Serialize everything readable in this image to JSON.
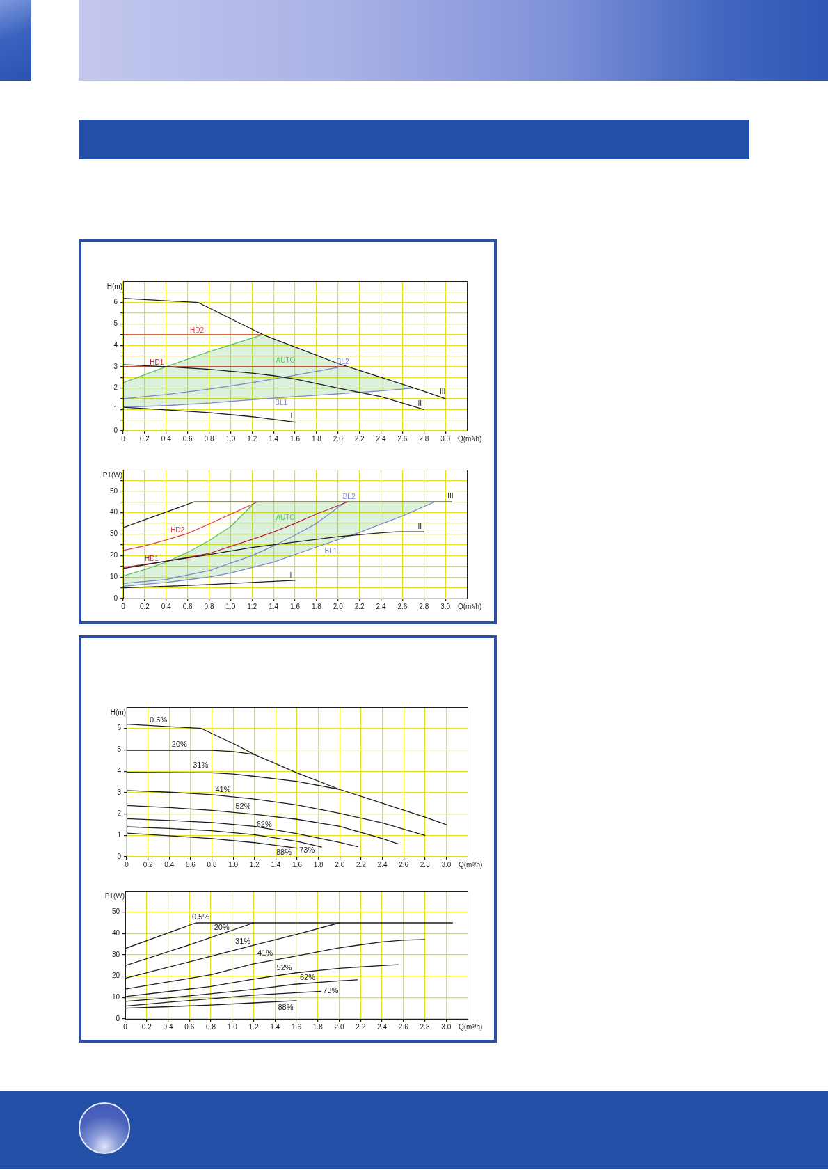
{
  "chart_data": [
    {
      "type": "line",
      "xlabel": "Q(m³/h)",
      "ylabel": "H(m)",
      "xlim": [
        0,
        3.2
      ],
      "ylim": [
        0,
        7
      ],
      "xticks": [
        0,
        0.2,
        0.4,
        0.6,
        0.8,
        {
          "value": 1,
          "label": "1.0"
        },
        1.2,
        1.4,
        1.6,
        1.8,
        {
          "value": 2,
          "label": "2.0"
        },
        2.2,
        2.4,
        2.6,
        2.8,
        {
          "value": 3,
          "label": "3.0"
        }
      ],
      "yticks": [
        0,
        {
          "value": 0.5,
          "label": null
        },
        1,
        {
          "value": 1.5,
          "label": null
        },
        2,
        {
          "value": 2.5,
          "label": null
        },
        3,
        {
          "value": 3.5,
          "label": null
        },
        4,
        {
          "value": 4.5,
          "label": null
        },
        5,
        {
          "value": 5.5,
          "label": null
        },
        6,
        {
          "value": 6.5,
          "label": null
        }
      ],
      "grid": true,
      "series": [
        {
          "name": "III",
          "color": "#1e1e1e",
          "x": [
            0,
            0.7,
            1.0,
            1.3,
            1.6,
            2.0,
            2.4,
            2.8,
            3.0
          ],
          "values": [
            6.2,
            6.0,
            5.25,
            4.5,
            3.92,
            3.15,
            2.5,
            1.85,
            1.5
          ]
        },
        {
          "name": "II",
          "color": "#1e1e1e",
          "x": [
            0,
            0.4,
            0.8,
            1.2,
            1.4,
            1.6,
            2.0,
            2.4,
            2.8
          ],
          "values": [
            3.1,
            3.0,
            2.88,
            2.7,
            2.58,
            2.42,
            2.0,
            1.6,
            1.0
          ]
        },
        {
          "name": "I",
          "color": "#1e1e1e",
          "x": [
            0,
            0.4,
            0.8,
            1.2,
            1.6
          ],
          "values": [
            1.1,
            0.98,
            0.85,
            0.66,
            0.4
          ]
        },
        {
          "name": "HD2",
          "color": "#d94040",
          "x": [
            0,
            1.3
          ],
          "values": [
            4.5,
            4.5
          ]
        },
        {
          "name": "HD1",
          "color": "#b8243c",
          "x": [
            0,
            2.07
          ],
          "values": [
            3.0,
            3.0
          ]
        },
        {
          "name": "BL2",
          "color": "#7a86cc",
          "x": [
            0,
            0.4,
            0.8,
            1.2,
            1.6,
            2.0
          ],
          "values": [
            1.5,
            1.7,
            1.95,
            2.25,
            2.6,
            2.97
          ]
        },
        {
          "name": "BL1",
          "color": "#7a86cc",
          "x": [
            0,
            0.4,
            0.8,
            1.2,
            1.6,
            2.0,
            2.4,
            2.7
          ],
          "values": [
            1.1,
            1.18,
            1.3,
            1.45,
            1.6,
            1.73,
            1.87,
            2.0
          ]
        },
        {
          "name": "AUTO",
          "color": "#5cbf5c",
          "x": [
            0,
            0.4,
            0.8,
            1.3,
            1.6,
            2.0,
            2.4,
            2.7
          ],
          "values": [
            2.25,
            3.0,
            3.7,
            4.5,
            null,
            null,
            null,
            null
          ],
          "lower": [
            1.1,
            1.18,
            1.3,
            1.49,
            1.6,
            1.73,
            1.87,
            2.0
          ],
          "upper": [
            2.25,
            3.0,
            3.7,
            4.5,
            3.92,
            3.15,
            2.5,
            2.0
          ]
        }
      ]
    },
    {
      "type": "line",
      "xlabel": "Q(m³/h)",
      "ylabel": "P1(W)",
      "xlim": [
        0,
        3.2
      ],
      "ylim": [
        0,
        60
      ],
      "xticks": [
        0,
        0.2,
        0.4,
        0.6,
        0.8,
        {
          "value": 1,
          "label": "1.0"
        },
        1.2,
        1.4,
        1.6,
        1.8,
        {
          "value": 2,
          "label": "2.0"
        },
        2.2,
        2.4,
        2.6,
        2.8,
        {
          "value": 3,
          "label": "3.0"
        }
      ],
      "yticks": [
        0,
        {
          "value": 5,
          "label": null
        },
        10,
        {
          "value": 15,
          "label": null
        },
        20,
        {
          "value": 25,
          "label": null
        },
        30,
        {
          "value": 35,
          "label": null
        },
        40,
        {
          "value": 45,
          "label": null
        },
        50,
        {
          "value": 55,
          "label": null
        }
      ],
      "grid": true,
      "series": [
        {
          "name": "III",
          "color": "#1e1e1e",
          "x": [
            0,
            0.66,
            3.06
          ],
          "values": [
            33,
            45,
            45
          ]
        },
        {
          "name": "II",
          "color": "#1e1e1e",
          "x": [
            0,
            0.4,
            0.8,
            1.2,
            1.6,
            2.0,
            2.4,
            2.55,
            2.8
          ],
          "values": [
            14,
            17.4,
            20.5,
            23.8,
            26.3,
            28.8,
            30.6,
            31.1,
            31.1
          ]
        },
        {
          "name": "I",
          "color": "#1e1e1e",
          "x": [
            0,
            0.4,
            0.8,
            1.2,
            1.6
          ],
          "values": [
            5,
            5.7,
            6.5,
            7.5,
            8.5
          ]
        },
        {
          "name": "HD2",
          "color": "#d94040",
          "x": [
            0,
            0.2,
            0.4,
            0.6,
            0.8,
            1.0,
            1.25
          ],
          "values": [
            22.4,
            24.5,
            27.3,
            30.3,
            34.7,
            39.3,
            45
          ]
        },
        {
          "name": "HD1",
          "color": "#b8243c",
          "x": [
            0,
            0.4,
            0.8,
            1.0,
            1.2,
            1.4,
            1.6,
            1.8,
            2.09
          ],
          "values": [
            14.5,
            17.4,
            21,
            24.3,
            27.5,
            31,
            35,
            39.4,
            45
          ]
        },
        {
          "name": "BL2",
          "color": "#7a86cc",
          "x": [
            0,
            0.4,
            0.8,
            1.2,
            1.4,
            1.6,
            1.8,
            2.07
          ],
          "values": [
            7,
            8.9,
            13,
            20,
            24.5,
            29.5,
            35,
            45
          ]
        },
        {
          "name": "BL1",
          "color": "#7a86cc",
          "x": [
            0,
            0.4,
            0.8,
            1.0,
            1.4,
            1.8,
            2.2,
            2.6,
            2.9
          ],
          "values": [
            5.7,
            7.5,
            10,
            11.9,
            17,
            24,
            30.8,
            38.5,
            45
          ]
        },
        {
          "name": "AUTO",
          "color": "#5cbf5c",
          "x": [
            0,
            0.2,
            0.4,
            0.6,
            0.8,
            1.0,
            1.23,
            1.6,
            2.0,
            2.4,
            2.9
          ],
          "values": [
            10.5,
            13.5,
            17,
            21.5,
            27,
            33.5,
            45,
            null,
            null,
            null,
            null
          ],
          "lower": [
            5.7,
            6.6,
            7.5,
            8.75,
            10,
            11.9,
            14.8,
            20.5,
            27.4,
            34.7,
            45
          ],
          "upper": [
            10.5,
            13.5,
            17,
            21.5,
            27,
            33.5,
            45,
            45,
            45,
            45,
            45
          ]
        }
      ]
    },
    {
      "type": "line",
      "xlabel": "Q(m³/h)",
      "ylabel": "H(m)",
      "xlim": [
        0,
        3.2
      ],
      "ylim": [
        0,
        7
      ],
      "xticks": [
        0,
        0.2,
        0.4,
        0.6,
        0.8,
        {
          "value": 1,
          "label": "1.0"
        },
        1.2,
        1.4,
        1.6,
        1.8,
        {
          "value": 2,
          "label": "2.0"
        },
        2.2,
        2.4,
        2.6,
        2.8,
        {
          "value": 3,
          "label": "3.0"
        }
      ],
      "yticks": [
        0,
        1,
        2,
        3,
        4,
        5,
        6
      ],
      "grid": true,
      "series": [
        {
          "name": "0.5%",
          "color": "#1e1e1e",
          "x": [
            0,
            0.7,
            1.0,
            1.2,
            1.6,
            2.0,
            2.4,
            2.8,
            3.0
          ],
          "values": [
            6.2,
            6.0,
            5.3,
            4.78,
            3.92,
            3.15,
            2.5,
            1.85,
            1.5
          ]
        },
        {
          "name": "20%",
          "color": "#1e1e1e",
          "x": [
            0,
            0.8,
            1.0,
            1.2
          ],
          "values": [
            4.98,
            4.98,
            4.92,
            4.78
          ]
        },
        {
          "name": "31%",
          "color": "#1e1e1e",
          "x": [
            0,
            0.8,
            1.0,
            1.2,
            1.6,
            2.0
          ],
          "values": [
            3.95,
            3.93,
            3.87,
            3.76,
            3.52,
            3.15
          ]
        },
        {
          "name": "41%",
          "color": "#1e1e1e",
          "x": [
            0,
            0.4,
            0.8,
            1.2,
            1.6,
            2.0,
            2.4,
            2.8
          ],
          "values": [
            3.1,
            3.02,
            2.9,
            2.7,
            2.42,
            2.03,
            1.58,
            1.0
          ]
        },
        {
          "name": "52%",
          "color": "#1e1e1e",
          "x": [
            0,
            0.4,
            0.8,
            1.2,
            1.6,
            2.0,
            2.4,
            2.55
          ],
          "values": [
            2.4,
            2.3,
            2.17,
            1.98,
            1.75,
            1.42,
            0.85,
            0.6
          ]
        },
        {
          "name": "62%",
          "color": "#1e1e1e",
          "x": [
            0,
            0.4,
            0.8,
            1.2,
            1.6,
            2.0,
            2.17
          ],
          "values": [
            1.78,
            1.7,
            1.6,
            1.42,
            1.08,
            0.67,
            0.47
          ]
        },
        {
          "name": "73%",
          "color": "#1e1e1e",
          "x": [
            0,
            0.4,
            0.8,
            1.2,
            1.6,
            1.83
          ],
          "values": [
            1.4,
            1.32,
            1.22,
            1.03,
            0.72,
            0.45
          ]
        },
        {
          "name": "88%",
          "color": "#1e1e1e",
          "x": [
            0,
            0.4,
            0.8,
            1.2,
            1.6
          ],
          "values": [
            1.1,
            0.98,
            0.85,
            0.66,
            0.4
          ]
        }
      ]
    },
    {
      "type": "line",
      "xlabel": "Q(m³/h)",
      "ylabel": "P1(W)",
      "xlim": [
        0,
        3.2
      ],
      "ylim": [
        0,
        60
      ],
      "xticks": [
        0,
        0.2,
        0.4,
        0.6,
        0.8,
        {
          "value": 1,
          "label": "1.0"
        },
        1.2,
        1.4,
        1.6,
        1.8,
        {
          "value": 2,
          "label": "2.0"
        },
        2.2,
        2.4,
        2.6,
        2.8,
        {
          "value": 3,
          "label": "3.0"
        }
      ],
      "yticks": [
        0,
        10,
        20,
        30,
        40,
        50
      ],
      "grid": true,
      "series": [
        {
          "name": "0.5%",
          "color": "#1e1e1e",
          "x": [
            0,
            0.66,
            3.06
          ],
          "values": [
            33,
            45,
            45
          ]
        },
        {
          "name": "20%",
          "color": "#1e1e1e",
          "x": [
            0,
            0.6,
            1.2
          ],
          "values": [
            25,
            34.7,
            45
          ]
        },
        {
          "name": "31%",
          "color": "#1e1e1e",
          "x": [
            0,
            0.4,
            0.8,
            1.2,
            1.6,
            2.0
          ],
          "values": [
            19,
            24.2,
            29.3,
            34.5,
            39.6,
            45
          ]
        },
        {
          "name": "41%",
          "color": "#1e1e1e",
          "x": [
            0,
            0.4,
            0.8,
            1.2,
            1.6,
            2.0,
            2.4,
            2.6,
            2.8
          ],
          "values": [
            14,
            17.3,
            20.7,
            25.8,
            29.5,
            33.3,
            36.1,
            36.9,
            37.2
          ]
        },
        {
          "name": "52%",
          "color": "#1e1e1e",
          "x": [
            0,
            0.4,
            0.8,
            1.2,
            1.6,
            2.0,
            2.4,
            2.55
          ],
          "values": [
            10.5,
            12.8,
            15.2,
            18.6,
            21.6,
            23.7,
            25,
            25.4
          ]
        },
        {
          "name": "62%",
          "color": "#1e1e1e",
          "x": [
            0,
            0.4,
            0.8,
            1.2,
            1.6,
            2.0,
            2.17
          ],
          "values": [
            8.2,
            9.8,
            11.8,
            13.8,
            16.3,
            17.8,
            18.3
          ]
        },
        {
          "name": "73%",
          "color": "#1e1e1e",
          "x": [
            0,
            0.4,
            0.8,
            1.2,
            1.6,
            1.83
          ],
          "values": [
            6,
            7.8,
            9.4,
            11.1,
            12.3,
            12.9
          ]
        },
        {
          "name": "88%",
          "color": "#1e1e1e",
          "x": [
            0,
            0.4,
            0.8,
            1.2,
            1.6
          ],
          "values": [
            5,
            5.7,
            6.5,
            7.5,
            8.5
          ]
        }
      ]
    }
  ]
}
